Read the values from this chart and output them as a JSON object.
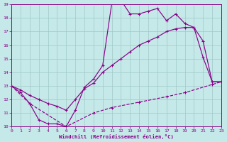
{
  "xlabel": "Windchill (Refroidissement éolien,°C)",
  "bg_color": "#c5e8e8",
  "grid_color": "#a0c8c8",
  "line_color": "#880088",
  "xlim": [
    0,
    23
  ],
  "ylim": [
    10,
    19
  ],
  "xticks": [
    0,
    1,
    2,
    3,
    4,
    5,
    6,
    7,
    8,
    9,
    10,
    11,
    12,
    13,
    14,
    15,
    16,
    17,
    18,
    19,
    20,
    21,
    22,
    23
  ],
  "yticks": [
    10,
    11,
    12,
    13,
    14,
    15,
    16,
    17,
    18,
    19
  ],
  "curve1_x": [
    0,
    1,
    2,
    3,
    4,
    5,
    6,
    7,
    8,
    9,
    10,
    11,
    12,
    13,
    14,
    15,
    16,
    17,
    18,
    19,
    20,
    21,
    22,
    23
  ],
  "curve1_y": [
    13.0,
    12.5,
    11.7,
    10.5,
    10.2,
    10.2,
    10.0,
    11.2,
    12.9,
    13.5,
    14.5,
    19.1,
    19.3,
    18.3,
    18.3,
    18.5,
    18.7,
    17.8,
    18.3,
    17.6,
    17.3,
    15.1,
    13.3,
    13.3
  ],
  "curve2_x": [
    0,
    1,
    2,
    3,
    4,
    5,
    6,
    7,
    8,
    9,
    10,
    11,
    12,
    13,
    14,
    15,
    16,
    17,
    18,
    19,
    20,
    21,
    22,
    23
  ],
  "curve2_y": [
    13.0,
    12.7,
    12.3,
    12.0,
    11.7,
    11.5,
    11.2,
    12.0,
    12.8,
    13.2,
    14.0,
    14.5,
    15.0,
    15.5,
    16.0,
    16.3,
    16.6,
    17.0,
    17.2,
    17.3,
    17.3,
    16.3,
    13.3,
    13.3
  ],
  "curve3_x": [
    0,
    2,
    6,
    9,
    11,
    14,
    17,
    19,
    22,
    23
  ],
  "curve3_y": [
    13.0,
    11.7,
    10.0,
    11.0,
    11.4,
    11.8,
    12.2,
    12.5,
    13.1,
    13.3
  ]
}
